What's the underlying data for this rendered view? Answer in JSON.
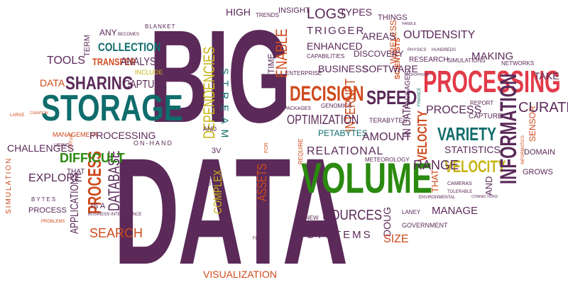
{
  "colors": {
    "purple": "#5b2a59",
    "teal": "#0f6d6c",
    "orange": "#cf4a1c",
    "green": "#2b8a10",
    "yellow": "#c7b414",
    "red": "#e23a48",
    "dark": "#3a2140"
  },
  "words": {
    "big": "BIG",
    "data": "DATA",
    "volume": "VOLUME",
    "storage": "STORAGE",
    "processing": "PROCESSING",
    "decision": "DECISION",
    "sharing": "SHARING",
    "speed": "SPEED",
    "variety": "VARIETY",
    "velocity": "VELOCITY",
    "information": "INFORMATION",
    "dependencies": "DEPENDENCIES",
    "stream": "STREAM",
    "enable": "ENABLE",
    "trigger": "TRIGGER",
    "enhanced": "ENHANCED",
    "logs": "LOGS",
    "types": "TYPES",
    "high": "HIGH",
    "insight": "INSIGHT",
    "trends": "TRENDS",
    "things": "THINGS",
    "areas": "AREAS",
    "out": "OUT",
    "density": "DENSITY",
    "collection": "COLLECTION",
    "tools": "TOOLS",
    "transfer": "TRANSFER",
    "analysis": "ANALYSIS",
    "capture": "CAPTURE",
    "include": "INCLUDE",
    "term": "TERM",
    "any": "ANY",
    "becomes": "BECOMES",
    "blanket": "BLANKET",
    "capabilities": "CAPABILITIES",
    "discovery": "DISCOVERY",
    "wireless": "WIRELESS",
    "business": "BUSINESS",
    "software": "SOFTWARE",
    "enterprise": "ENTERPRISE",
    "time": "TIME",
    "making": "MAKING",
    "simulations": "SIMULATIONS",
    "networks": "NETWORKS",
    "hundreds": "HUNDREDS",
    "research": "RESEARCH",
    "physics": "PHYSICS",
    "handle": "HANDLE",
    "take": "TAKE",
    "scientists": "SCIENTISTS",
    "packages": "PACKAGES",
    "genomics": "GENOMICS",
    "internet": "INTERNET",
    "optimization": "OPTIMIZATION",
    "terabytes": "TERABYTES",
    "in_data": "IN DATA",
    "petabytes": "PETABYTES",
    "amount": "AMOUNT",
    "relational": "RELATIONAL",
    "meteorology": "METEOROLOGY",
    "process": "PROCESS",
    "report": "REPORT",
    "curate": "CURATE",
    "sensor": "SENSOR",
    "statistics": "STATISTICS",
    "domain": "DOMAIN",
    "grows": "GROWS",
    "range": "RANGE",
    "that": "THAT",
    "and": "AND",
    "cameras": "CAMERAS",
    "tolerable": "TOLERABLE",
    "manage": "MANAGE",
    "environmental": "ENVIRONMENTAL",
    "connections": "CONNECTIONS",
    "government": "GOVERNMENT",
    "laney": "LANEY",
    "doug": "DOUG",
    "size": "SIZE",
    "systems": "SYSTEMS",
    "sources": "SOURCES",
    "new": "NEW",
    "flow": "FLOW",
    "forms": "FORMS",
    "assets": "ASSETS",
    "complex": "COMPLEX",
    "gartner": "GARTNER",
    "v3": "3V",
    "on_hand": "ON-HAND",
    "require": "REQUIRE",
    "for": "FOR",
    "visualization": "VISUALIZATION",
    "data_small": "DATA",
    "management": "MANAGEMENT",
    "challenges": "CHALLENGES",
    "difficult": "DIFFICULT",
    "explore": "EXPLORE",
    "applications": "APPLICATIONS",
    "database": "DATABASE",
    "search": "SEARCH",
    "is_a": "IS A",
    "business_intelligence": "BUSINESS INTELLIGENCE",
    "problems": "PROBLEMS",
    "simulation": "SIMULATION",
    "bytes": "BYTES",
    "using": "USING",
    "virtual": "VIRTUAL",
    "large": "LARGE",
    "curation": "CURATION",
    "microphone": "MICROPHONE",
    "finance": "FINANCE",
    "informatics": "INFORMATICS"
  }
}
